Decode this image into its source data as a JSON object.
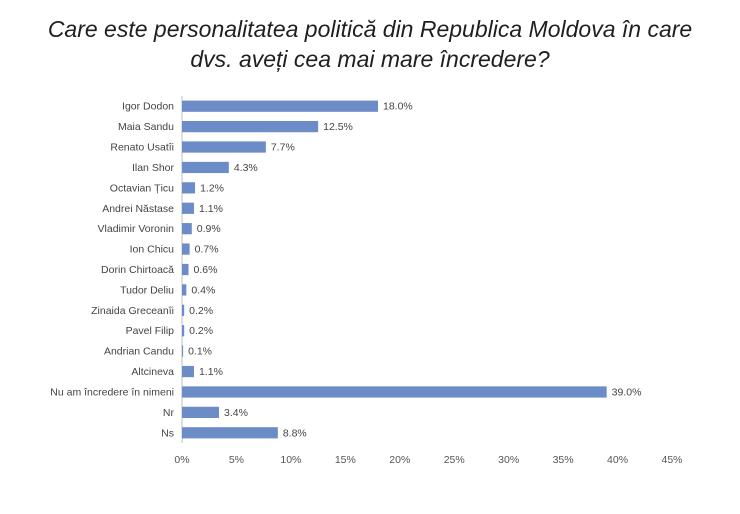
{
  "chart_data": {
    "type": "bar",
    "orientation": "horizontal",
    "title_lines": [
      "Care este personalitatea politică din Republica Moldova în care",
      "dvs. aveți cea mai mare încredere?"
    ],
    "categories": [
      "Igor Dodon",
      "Maia Sandu",
      "Renato Usatîi",
      "Ilan Shor",
      "Octavian Țicu",
      "Andrei Năstase",
      "Vladimir Voronin",
      "Ion Chicu",
      "Dorin Chirtoacă",
      "Tudor Deliu",
      "Zinaida Greceanîi",
      "Pavel Filip",
      "Andrian Candu",
      "Altcineva",
      "Nu am încredere în nimeni",
      "Nr",
      "Ns"
    ],
    "values": [
      18.0,
      12.5,
      7.7,
      4.3,
      1.2,
      1.1,
      0.9,
      0.7,
      0.6,
      0.4,
      0.2,
      0.2,
      0.1,
      1.1,
      39.0,
      3.4,
      8.8
    ],
    "value_labels": [
      "18.0%",
      "12.5%",
      "7.7%",
      "4.3%",
      "1.2%",
      "1.1%",
      "0.9%",
      "0.7%",
      "0.6%",
      "0.4%",
      "0.2%",
      "0.2%",
      "0.1%",
      "1.1%",
      "39.0%",
      "3.4%",
      "8.8%"
    ],
    "xlim": [
      0,
      45
    ],
    "xticks": [
      0,
      5,
      10,
      15,
      20,
      25,
      30,
      35,
      40,
      45
    ],
    "xtick_labels": [
      "0%",
      "5%",
      "10%",
      "15%",
      "20%",
      "25%",
      "30%",
      "35%",
      "40%",
      "45%"
    ],
    "xlabel": "",
    "ylabel": "",
    "grid": false,
    "legend": "none",
    "bar_color": "#6b8cc7"
  }
}
